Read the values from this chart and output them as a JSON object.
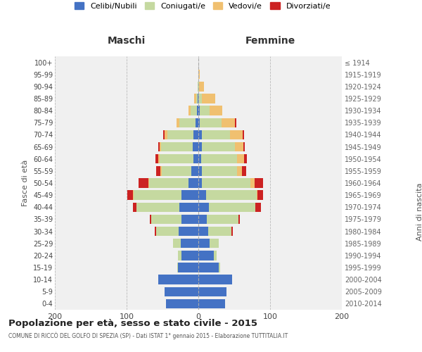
{
  "age_groups": [
    "0-4",
    "5-9",
    "10-14",
    "15-19",
    "20-24",
    "25-29",
    "30-34",
    "35-39",
    "40-44",
    "45-49",
    "50-54",
    "55-59",
    "60-64",
    "65-69",
    "70-74",
    "75-79",
    "80-84",
    "85-89",
    "90-94",
    "95-99",
    "100+"
  ],
  "birth_years": [
    "2010-2014",
    "2005-2009",
    "2000-2004",
    "1995-1999",
    "1990-1994",
    "1985-1989",
    "1980-1984",
    "1975-1979",
    "1970-1974",
    "1965-1969",
    "1960-1964",
    "1955-1959",
    "1950-1954",
    "1945-1949",
    "1940-1944",
    "1935-1939",
    "1930-1934",
    "1925-1929",
    "1920-1924",
    "1915-1919",
    "≤ 1914"
  ],
  "maschi": {
    "celibi": [
      45,
      47,
      56,
      28,
      24,
      25,
      27,
      24,
      26,
      24,
      14,
      10,
      7,
      8,
      7,
      4,
      2,
      1,
      0,
      0,
      0
    ],
    "coniugati": [
      0,
      0,
      0,
      1,
      4,
      10,
      32,
      42,
      60,
      66,
      55,
      41,
      47,
      44,
      36,
      22,
      9,
      2,
      1,
      0,
      0
    ],
    "vedovi": [
      0,
      0,
      0,
      0,
      0,
      0,
      0,
      0,
      0,
      1,
      1,
      2,
      2,
      2,
      4,
      4,
      3,
      3,
      0,
      0,
      0
    ],
    "divorziati": [
      0,
      0,
      0,
      0,
      0,
      0,
      2,
      2,
      5,
      8,
      13,
      6,
      4,
      2,
      2,
      0,
      0,
      0,
      0,
      0,
      0
    ]
  },
  "femmine": {
    "nubili": [
      37,
      39,
      47,
      28,
      22,
      16,
      14,
      12,
      15,
      11,
      5,
      5,
      4,
      5,
      5,
      2,
      2,
      0,
      0,
      0,
      0
    ],
    "coniugate": [
      0,
      0,
      0,
      2,
      3,
      12,
      32,
      44,
      64,
      70,
      68,
      49,
      50,
      46,
      39,
      30,
      14,
      5,
      1,
      0,
      0
    ],
    "vedove": [
      0,
      0,
      0,
      0,
      0,
      0,
      0,
      0,
      0,
      1,
      5,
      7,
      10,
      12,
      18,
      19,
      17,
      19,
      7,
      2,
      0
    ],
    "divorziate": [
      0,
      0,
      0,
      0,
      0,
      0,
      2,
      2,
      8,
      8,
      12,
      6,
      4,
      2,
      2,
      2,
      0,
      0,
      0,
      0,
      0
    ]
  },
  "color_celibi": "#4472c4",
  "color_coniugati": "#c5d9a0",
  "color_vedovi": "#f0c070",
  "color_divorziati": "#cc2222",
  "xlim": 200,
  "bg_color": "#ffffff",
  "grid_color": "#cccccc",
  "title": "Popolazione per età, sesso e stato civile - 2015",
  "subtitle": "COMUNE DI RICCÒ DEL GOLFO DI SPEZIA (SP) - Dati ISTAT 1° gennaio 2015 - Elaborazione TUTTITALIA.IT",
  "ylabel_left": "Fasce di età",
  "ylabel_right": "Anni di nascita",
  "xlabel_left": "Maschi",
  "xlabel_right": "Femmine"
}
